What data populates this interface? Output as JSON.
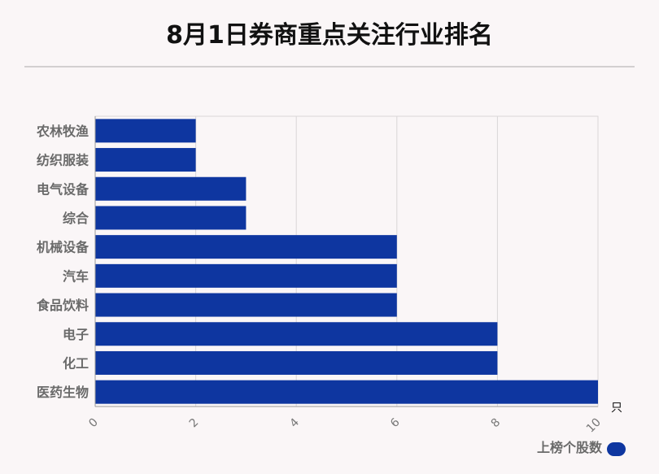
{
  "title": "8月1日券商重点关注行业排名",
  "chart_data": {
    "type": "bar",
    "orientation": "horizontal",
    "title": "8月1日券商重点关注行业排名",
    "categories": [
      "农林牧渔",
      "纺织服装",
      "电气设备",
      "综合",
      "机械设备",
      "汽车",
      "食品饮料",
      "电子",
      "化工",
      "医药生物"
    ],
    "series": [
      {
        "name": "上榜个股数",
        "values": [
          2,
          2,
          3,
          3,
          6,
          6,
          6,
          8,
          8,
          10
        ],
        "color": "#0e36a0"
      }
    ],
    "xlim": [
      0,
      10
    ],
    "x_ticks": [
      "0",
      "2",
      "4",
      "6",
      "8",
      "10"
    ],
    "x_unit": "只",
    "grid": true,
    "legend_position": "bottom-right"
  }
}
